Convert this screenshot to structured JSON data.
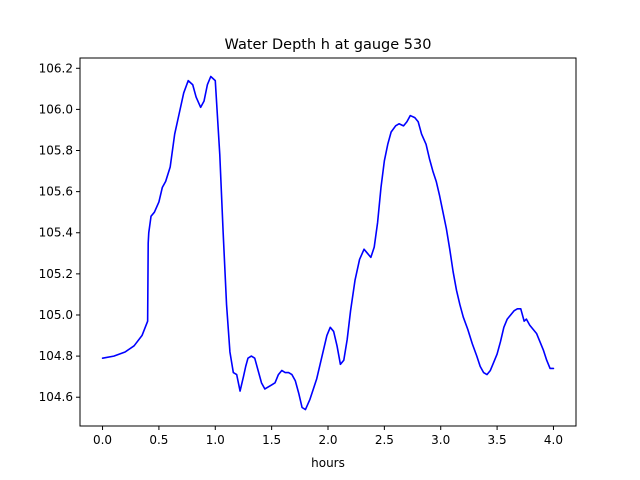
{
  "chart_data": {
    "type": "line",
    "title": "Water Depth h at gauge 530",
    "xlabel": "hours",
    "ylabel": "",
    "xlim": [
      -0.2,
      4.2
    ],
    "ylim": [
      104.46,
      106.25
    ],
    "xticks": [
      0.0,
      0.5,
      1.0,
      1.5,
      2.0,
      2.5,
      3.0,
      3.5,
      4.0
    ],
    "xtick_labels": [
      "0.0",
      "0.5",
      "1.0",
      "1.5",
      "2.0",
      "2.5",
      "3.0",
      "3.5",
      "4.0"
    ],
    "yticks": [
      104.6,
      104.8,
      105.0,
      105.2,
      105.4,
      105.6,
      105.8,
      106.0,
      106.2
    ],
    "ytick_labels": [
      "104.6",
      "104.8",
      "105.0",
      "105.2",
      "105.4",
      "105.6",
      "105.8",
      "106.0",
      "106.2"
    ],
    "grid": false,
    "series": [
      {
        "color": "#0000ff",
        "x": [
          0.0,
          0.1,
          0.2,
          0.28,
          0.35,
          0.4,
          0.405,
          0.41,
          0.43,
          0.46,
          0.5,
          0.53,
          0.56,
          0.6,
          0.64,
          0.68,
          0.72,
          0.76,
          0.8,
          0.83,
          0.87,
          0.9,
          0.93,
          0.96,
          1.0,
          1.04,
          1.07,
          1.1,
          1.13,
          1.16,
          1.19,
          1.22,
          1.25,
          1.27,
          1.29,
          1.32,
          1.35,
          1.38,
          1.41,
          1.44,
          1.47,
          1.5,
          1.53,
          1.56,
          1.59,
          1.62,
          1.65,
          1.68,
          1.71,
          1.74,
          1.77,
          1.8,
          1.84,
          1.87,
          1.9,
          1.93,
          1.96,
          1.99,
          2.02,
          2.05,
          2.08,
          2.11,
          2.14,
          2.17,
          2.2,
          2.24,
          2.28,
          2.32,
          2.35,
          2.38,
          2.41,
          2.44,
          2.47,
          2.5,
          2.53,
          2.56,
          2.6,
          2.63,
          2.67,
          2.7,
          2.73,
          2.77,
          2.8,
          2.83,
          2.87,
          2.9,
          2.93,
          2.96,
          2.99,
          3.02,
          3.05,
          3.08,
          3.11,
          3.14,
          3.17,
          3.2,
          3.24,
          3.28,
          3.32,
          3.35,
          3.38,
          3.41,
          3.44,
          3.47,
          3.5,
          3.53,
          3.56,
          3.59,
          3.62,
          3.65,
          3.68,
          3.71,
          3.74,
          3.76,
          3.79,
          3.82,
          3.85,
          3.88,
          3.91,
          3.94,
          3.97,
          4.0
        ],
        "y": [
          104.79,
          104.8,
          104.82,
          104.85,
          104.9,
          104.97,
          105.35,
          105.4,
          105.48,
          105.5,
          105.55,
          105.62,
          105.65,
          105.72,
          105.88,
          105.98,
          106.08,
          106.14,
          106.12,
          106.06,
          106.01,
          106.04,
          106.12,
          106.16,
          106.14,
          105.78,
          105.4,
          105.05,
          104.82,
          104.72,
          104.71,
          104.63,
          104.7,
          104.75,
          104.79,
          104.8,
          104.79,
          104.73,
          104.67,
          104.64,
          104.65,
          104.66,
          104.67,
          104.71,
          104.73,
          104.72,
          104.72,
          104.71,
          104.68,
          104.62,
          104.55,
          104.54,
          104.59,
          104.64,
          104.69,
          104.76,
          104.83,
          104.9,
          104.94,
          104.92,
          104.85,
          104.76,
          104.78,
          104.88,
          105.02,
          105.17,
          105.27,
          105.32,
          105.3,
          105.28,
          105.33,
          105.45,
          105.62,
          105.75,
          105.83,
          105.89,
          105.92,
          105.93,
          105.92,
          105.94,
          105.97,
          105.96,
          105.94,
          105.88,
          105.83,
          105.76,
          105.7,
          105.65,
          105.58,
          105.5,
          105.42,
          105.32,
          105.21,
          105.12,
          105.05,
          104.99,
          104.93,
          104.86,
          104.8,
          104.75,
          104.72,
          104.71,
          104.73,
          104.77,
          104.81,
          104.87,
          104.94,
          104.98,
          105.0,
          105.02,
          105.03,
          105.03,
          104.97,
          104.98,
          104.95,
          104.93,
          104.91,
          104.87,
          104.83,
          104.78,
          104.74,
          104.74
        ]
      }
    ]
  }
}
